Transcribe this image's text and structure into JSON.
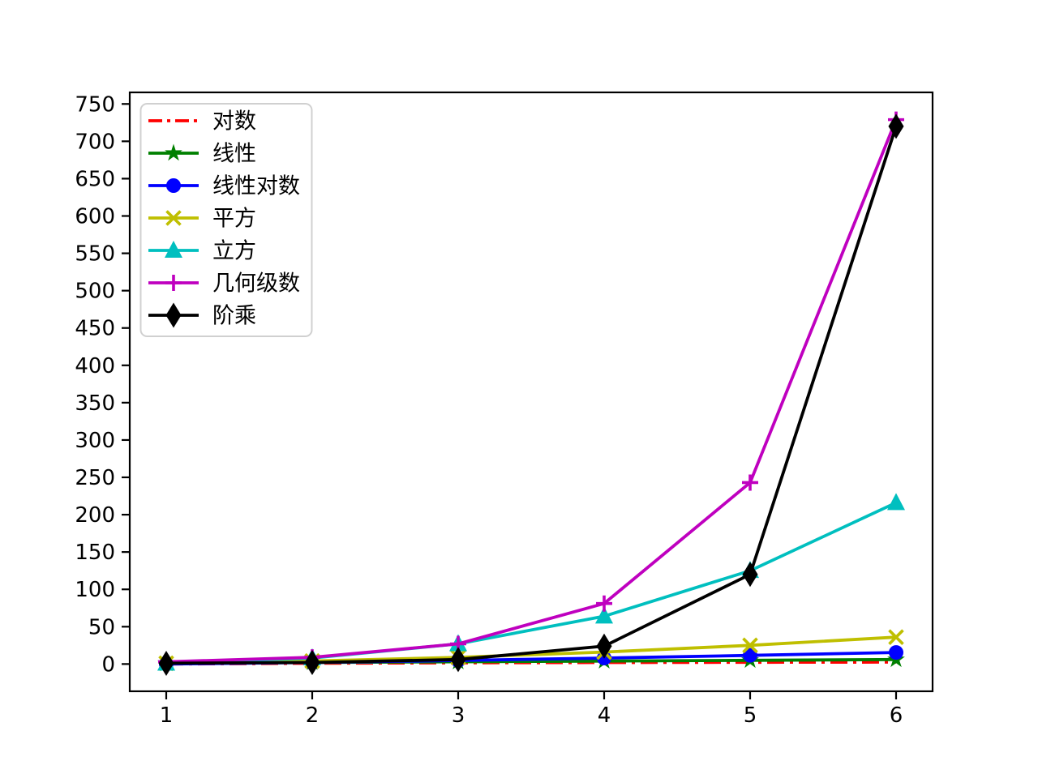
{
  "chart_data": {
    "type": "line",
    "title": "",
    "xlabel": "",
    "ylabel": "",
    "grid": false,
    "legend_position": "upper-left",
    "xlim": [
      0.75,
      6.25
    ],
    "ylim": [
      -36.5,
      765.5
    ],
    "xticks": [
      "1",
      "2",
      "3",
      "4",
      "5",
      "6"
    ],
    "yticks": [
      "0",
      "50",
      "100",
      "150",
      "200",
      "250",
      "300",
      "350",
      "400",
      "450",
      "500",
      "550",
      "600",
      "650",
      "700",
      "750"
    ],
    "ytick_values": [
      0,
      50,
      100,
      150,
      200,
      250,
      300,
      350,
      400,
      450,
      500,
      550,
      600,
      650,
      700,
      750
    ],
    "xtick_values": [
      1,
      2,
      3,
      4,
      5,
      6
    ],
    "x": [
      1,
      2,
      3,
      4,
      5,
      6
    ],
    "series": [
      {
        "id": "log",
        "label": "对数",
        "color": "#ff0000",
        "linestyle": "dashdot",
        "marker": "none",
        "values": [
          0,
          1,
          1.58,
          2,
          2.32,
          2.58
        ]
      },
      {
        "id": "linear",
        "label": "线性",
        "color": "#008000",
        "linestyle": "solid",
        "marker": "star",
        "values": [
          1,
          2,
          3,
          4,
          5,
          6
        ]
      },
      {
        "id": "linearithmic",
        "label": "线性对数",
        "color": "#0000ff",
        "linestyle": "solid",
        "marker": "circle",
        "values": [
          0,
          2,
          4.75,
          8,
          11.61,
          15.51
        ]
      },
      {
        "id": "square",
        "label": "平方",
        "color": "#bfbf00",
        "linestyle": "solid",
        "marker": "x",
        "values": [
          1,
          4,
          9,
          16,
          25,
          36
        ]
      },
      {
        "id": "cube",
        "label": "立方",
        "color": "#00bfbf",
        "linestyle": "solid",
        "marker": "triangle-up",
        "values": [
          1,
          8,
          27,
          64,
          125,
          216
        ]
      },
      {
        "id": "geometric",
        "label": "几何级数",
        "color": "#bf00bf",
        "linestyle": "solid",
        "marker": "plus",
        "values": [
          3,
          9,
          27,
          81,
          243,
          729
        ]
      },
      {
        "id": "factorial",
        "label": "阶乘",
        "color": "#000000",
        "linestyle": "solid",
        "marker": "thin-diamond",
        "values": [
          1,
          2,
          6,
          24,
          120,
          720
        ]
      }
    ],
    "colors": {
      "axes": "#000000",
      "legend_border": "#d0d0d0",
      "legend_background": "#ffffff",
      "figure_background": "#ffffff"
    }
  }
}
